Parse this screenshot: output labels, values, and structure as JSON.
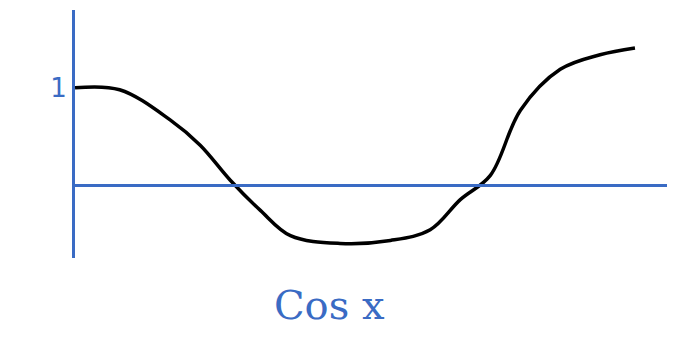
{
  "chart_data": {
    "type": "line",
    "title": "Cos x",
    "x": [
      0,
      0.46,
      0.98,
      1.29,
      1.6,
      1.91,
      2.22,
      2.73,
      3.25,
      3.66,
      3.97,
      4.28,
      4.59,
      5.0,
      5.41,
      5.77
    ],
    "values": [
      1.0,
      0.98,
      0.67,
      0.41,
      0.05,
      -0.26,
      -0.52,
      -0.6,
      -0.57,
      -0.46,
      -0.15,
      0.1,
      0.77,
      1.19,
      1.34,
      1.41
    ],
    "color": "#000000",
    "line_style": "solid",
    "xlim": [
      0,
      6.1
    ],
    "ylim": [
      -0.75,
      1.8
    ],
    "yticks": [
      1
    ],
    "tick_labels": "y",
    "grid": false
  }
}
